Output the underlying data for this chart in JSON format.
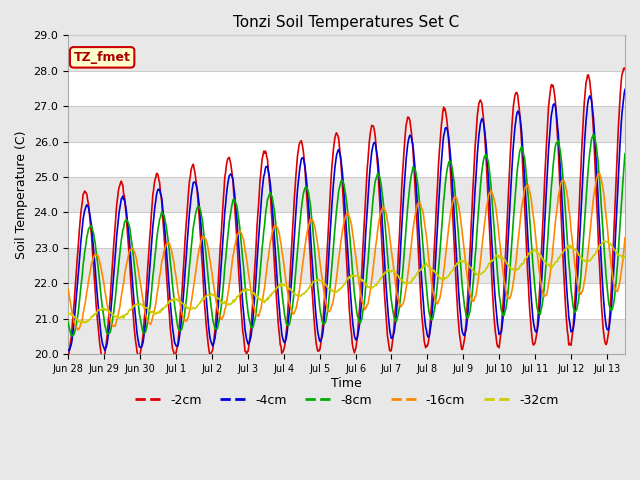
{
  "title": "Tonzi Soil Temperatures Set C",
  "xlabel": "Time",
  "ylabel": "Soil Temperature (C)",
  "ylim": [
    20.0,
    29.0
  ],
  "yticks": [
    20.0,
    21.0,
    22.0,
    23.0,
    24.0,
    25.0,
    26.0,
    27.0,
    28.0,
    29.0
  ],
  "xtick_labels": [
    "Jun 28",
    "Jun 29",
    "Jun 30",
    "Jul 1",
    "Jul 2",
    "Jul 3",
    "Jul 4",
    "Jul 5",
    "Jul 6",
    "Jul 7",
    "Jul 8",
    "Jul 9",
    "Jul 10",
    "Jul 11",
    "Jul 12",
    "Jul 13"
  ],
  "label_box_text": "TZ_fmet",
  "label_box_bg": "#ffffcc",
  "label_box_edge": "#cc0000",
  "series": [
    {
      "label": "-2cm",
      "color": "#dd0000",
      "lw": 1.2
    },
    {
      "label": "-4cm",
      "color": "#0000dd",
      "lw": 1.2
    },
    {
      "label": "-8cm",
      "color": "#00aa00",
      "lw": 1.2
    },
    {
      "label": "-16cm",
      "color": "#ff8800",
      "lw": 1.2
    },
    {
      "label": "-32cm",
      "color": "#cccc00",
      "lw": 1.2
    }
  ],
  "n_days": 15.5,
  "points_per_day": 48,
  "plot_bg": "#ffffff",
  "fig_bg": "#e8e8e8",
  "grid_color": "#cccccc",
  "band_color": "#e8e8e8"
}
